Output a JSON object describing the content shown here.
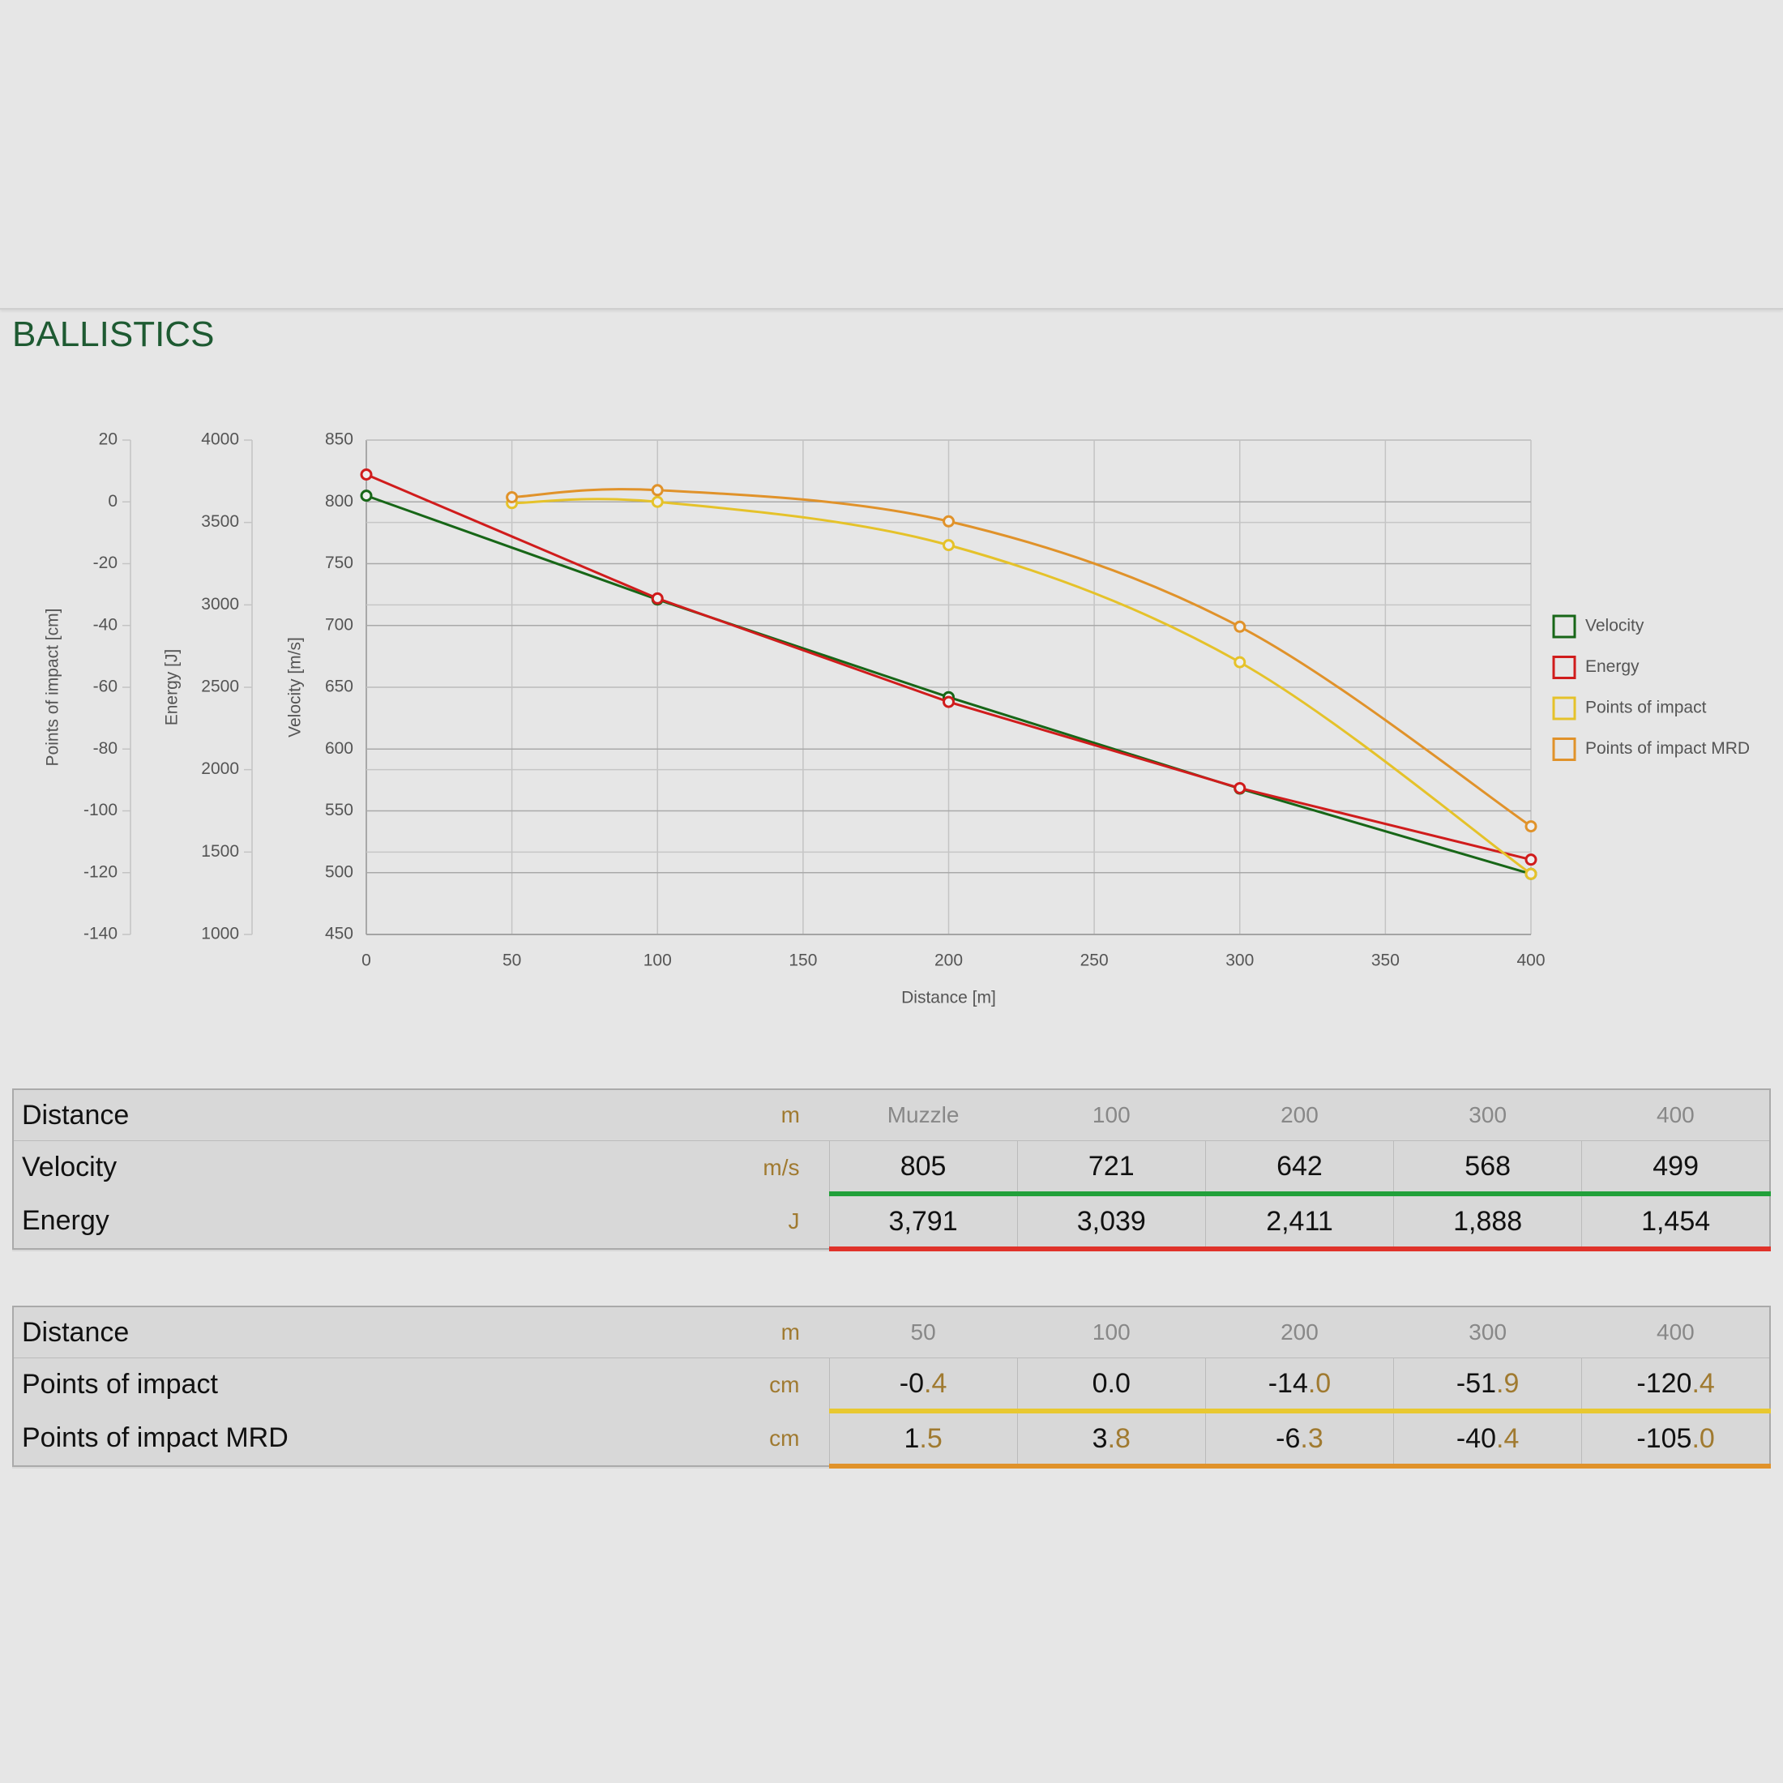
{
  "header": {
    "title": "BALLISTICS"
  },
  "chart_data": {
    "type": "line",
    "xlabel": "Distance [m]",
    "ylabel": "Velocity [m/s]",
    "y2label": "Energy [J]",
    "y3label": "Points of impact [cm]",
    "xlim": [
      0,
      400
    ],
    "xticks": [
      0,
      50,
      100,
      150,
      200,
      250,
      300,
      350,
      400
    ],
    "ylim": [
      450,
      850
    ],
    "yticks": [
      450,
      500,
      550,
      600,
      650,
      700,
      750,
      800,
      850
    ],
    "y2lim": [
      1000,
      4000
    ],
    "y2ticks": [
      1000,
      1500,
      2000,
      2500,
      3000,
      3500,
      4000
    ],
    "y3lim": [
      -140,
      20
    ],
    "y3ticks": [
      -140,
      -120,
      -100,
      -80,
      -60,
      -40,
      -20,
      0,
      20
    ],
    "grid": true,
    "legend": "right",
    "series": [
      {
        "name": "Velocity",
        "color": "#176617",
        "axis": "y",
        "smooth": false,
        "x": [
          0,
          100,
          200,
          300,
          400
        ],
        "values": [
          805,
          721,
          642,
          568,
          499
        ]
      },
      {
        "name": "Energy",
        "color": "#d01c1c",
        "axis": "y2",
        "smooth": false,
        "x": [
          0,
          100,
          200,
          300,
          400
        ],
        "values": [
          3791,
          3039,
          2411,
          1888,
          1454
        ]
      },
      {
        "name": "Points of impact",
        "color": "#e5c22a",
        "axis": "y3",
        "smooth": true,
        "x": [
          50,
          100,
          200,
          300,
          400
        ],
        "values": [
          -0.4,
          0.0,
          -14.0,
          -51.9,
          -120.4
        ]
      },
      {
        "name": "Points of impact MRD",
        "color": "#e0922a",
        "axis": "y3",
        "smooth": true,
        "x": [
          50,
          100,
          200,
          300,
          400
        ],
        "values": [
          1.5,
          3.8,
          -6.3,
          -40.4,
          -105.0
        ]
      }
    ]
  },
  "tables": [
    {
      "header": [
        "Distance",
        "m",
        "Muzzle",
        "100",
        "200",
        "300",
        "400"
      ],
      "rows": [
        [
          "Velocity",
          "m/s",
          "805",
          "721",
          "642",
          "568",
          "499"
        ],
        [
          "Energy",
          "J",
          "3,791",
          "3,039",
          "2,411",
          "1,888",
          "1,454"
        ]
      ]
    },
    {
      "header": [
        "Distance",
        "m",
        "50",
        "100",
        "200",
        "300",
        "400"
      ],
      "rows": [
        [
          "Points of impact",
          "cm",
          "-0.4",
          "0.0",
          "-14.0",
          "-51.9",
          "-120.4"
        ],
        [
          "Points of impact MRD",
          "cm",
          "1.5",
          "3.8",
          "-6.3",
          "-40.4",
          "-105.0"
        ]
      ]
    }
  ]
}
